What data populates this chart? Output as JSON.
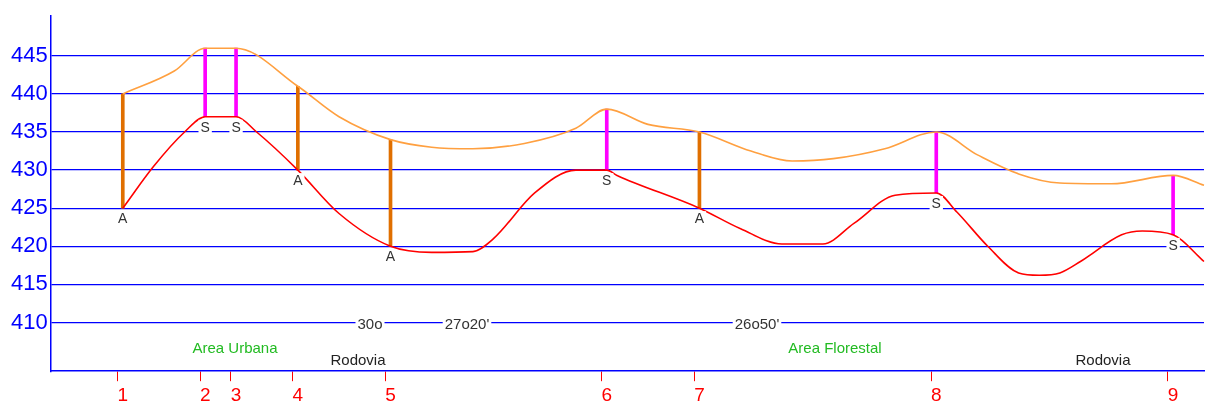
{
  "chart_data": {
    "type": "line",
    "ylim": [
      403.6,
      450.2
    ],
    "yticks": [
      410,
      415,
      420,
      425,
      430,
      435,
      440,
      445
    ],
    "categories": [
      null,
      null,
      null,
      null,
      null,
      null,
      null,
      "1",
      null,
      null,
      null,
      null,
      null,
      null,
      null,
      "2",
      null,
      null,
      "3",
      null,
      null,
      null,
      null,
      null,
      "4",
      null,
      null,
      null,
      null,
      null,
      null,
      null,
      null,
      "5",
      null,
      null,
      null,
      null,
      null,
      null,
      null,
      null,
      null,
      null,
      null,
      null,
      null,
      null,
      null,
      null,
      null,
      null,
      null,
      null,
      "6",
      null,
      null,
      null,
      null,
      null,
      null,
      null,
      null,
      "7",
      null,
      null,
      null,
      null,
      null,
      null,
      null,
      null,
      null,
      null,
      null,
      null,
      null,
      null,
      null,
      null,
      null,
      null,
      null,
      null,
      null,
      null,
      "8",
      null,
      null,
      null,
      null,
      null,
      null,
      null,
      null,
      null,
      null,
      null,
      null,
      null,
      null,
      null,
      null,
      null,
      null,
      null,
      null,
      null,
      null,
      "9",
      null,
      null,
      null
    ],
    "grid": "y",
    "legend": false,
    "marker": "none",
    "line_style": "solid",
    "series": [
      {
        "color": "#ff0000",
        "values": [
          null,
          null,
          null,
          null,
          null,
          null,
          null,
          425,
          null,
          null,
          430.5,
          null,
          null,
          435,
          null,
          437,
          null,
          null,
          437,
          null,
          435,
          null,
          null,
          null,
          430,
          null,
          null,
          null,
          424.3,
          null,
          null,
          null,
          null,
          420,
          null,
          null,
          null,
          419.2,
          null,
          null,
          null,
          419.3,
          null,
          421,
          null,
          null,
          null,
          427,
          null,
          null,
          null,
          430,
          null,
          null,
          430,
          429.3,
          null,
          null,
          null,
          null,
          null,
          null,
          null,
          425,
          null,
          null,
          null,
          422.3,
          null,
          null,
          null,
          420.3,
          null,
          null,
          null,
          420.3,
          null,
          null,
          423,
          null,
          null,
          null,
          426.7,
          null,
          null,
          null,
          427,
          null,
          424.5,
          null,
          null,
          420,
          null,
          null,
          416.5,
          null,
          416.2,
          null,
          416.5,
          null,
          418,
          null,
          null,
          null,
          421.5,
          null,
          422,
          null,
          null,
          421.5,
          null,
          null,
          418
        ]
      },
      {
        "color": "#ffa040",
        "values": [
          null,
          null,
          null,
          null,
          null,
          null,
          null,
          440,
          null,
          null,
          null,
          null,
          443,
          null,
          null,
          446,
          null,
          null,
          446,
          null,
          null,
          null,
          null,
          null,
          441,
          null,
          null,
          null,
          437,
          null,
          null,
          null,
          null,
          434,
          null,
          null,
          null,
          433,
          null,
          null,
          null,
          432.8,
          null,
          null,
          null,
          null,
          433.5,
          null,
          null,
          null,
          null,
          435.5,
          null,
          null,
          438,
          null,
          null,
          null,
          436,
          null,
          null,
          null,
          null,
          435,
          null,
          null,
          null,
          null,
          432.5,
          null,
          null,
          null,
          431.2,
          null,
          null,
          null,
          431.5,
          null,
          null,
          null,
          null,
          432.8,
          null,
          null,
          null,
          null,
          435,
          null,
          null,
          null,
          432,
          null,
          null,
          null,
          429.5,
          null,
          null,
          null,
          428.3,
          null,
          null,
          null,
          null,
          428.2,
          null,
          null,
          null,
          null,
          null,
          429.3,
          null,
          null,
          428
        ]
      },
      {
        "type": "bar",
        "color": "#e06f00",
        "base": [
          null,
          null,
          null,
          null,
          null,
          null,
          null,
          425,
          null,
          null,
          null,
          null,
          null,
          null,
          null,
          null,
          null,
          null,
          null,
          null,
          null,
          null,
          null,
          null,
          430,
          null,
          null,
          null,
          null,
          null,
          null,
          null,
          null,
          420,
          null,
          null,
          null,
          null,
          null,
          null,
          null,
          null,
          null,
          null,
          null,
          null,
          null,
          null,
          null,
          null,
          null,
          null,
          null,
          null,
          null,
          null,
          null,
          null,
          null,
          null,
          null,
          null,
          null,
          425,
          null,
          null,
          null,
          null,
          null,
          null,
          null,
          null,
          null,
          null,
          null,
          null,
          null,
          null,
          null,
          null,
          null,
          null,
          null,
          null,
          null,
          null,
          null,
          null,
          null,
          null,
          null,
          null,
          null,
          null,
          null,
          null,
          null,
          null,
          null,
          null,
          null,
          null,
          null,
          null,
          null,
          null,
          null,
          null,
          null,
          null,
          null,
          null,
          null
        ],
        "values": [
          null,
          null,
          null,
          null,
          null,
          null,
          null,
          15,
          null,
          null,
          null,
          null,
          null,
          null,
          null,
          null,
          null,
          null,
          null,
          null,
          null,
          null,
          null,
          null,
          11,
          null,
          null,
          null,
          null,
          null,
          null,
          null,
          null,
          14,
          null,
          null,
          null,
          null,
          null,
          null,
          null,
          null,
          null,
          null,
          null,
          null,
          null,
          null,
          null,
          null,
          null,
          null,
          null,
          null,
          null,
          null,
          null,
          null,
          null,
          null,
          null,
          null,
          null,
          10,
          null,
          null,
          null,
          null,
          null,
          null,
          null,
          null,
          null,
          null,
          null,
          null,
          null,
          null,
          null,
          null,
          null,
          null,
          null,
          null,
          null,
          null,
          null,
          null,
          null,
          null,
          null,
          null,
          null,
          null,
          null,
          null,
          null,
          null,
          null,
          null,
          null,
          null,
          null,
          null,
          null,
          null,
          null,
          null,
          null,
          null,
          null,
          null,
          null
        ]
      },
      {
        "type": "bar",
        "color": "#ff00ff",
        "base": [
          null,
          null,
          null,
          null,
          null,
          null,
          null,
          null,
          null,
          null,
          null,
          null,
          null,
          null,
          null,
          437,
          null,
          null,
          437,
          null,
          null,
          null,
          null,
          null,
          null,
          null,
          null,
          null,
          null,
          null,
          null,
          null,
          null,
          null,
          null,
          null,
          null,
          null,
          null,
          null,
          null,
          null,
          null,
          null,
          null,
          null,
          null,
          null,
          null,
          null,
          null,
          null,
          null,
          null,
          430,
          null,
          null,
          null,
          null,
          null,
          null,
          null,
          null,
          null,
          null,
          null,
          null,
          null,
          null,
          null,
          null,
          null,
          null,
          null,
          null,
          null,
          null,
          null,
          null,
          null,
          null,
          null,
          null,
          null,
          null,
          null,
          427,
          null,
          null,
          null,
          null,
          null,
          null,
          null,
          null,
          null,
          null,
          null,
          null,
          null,
          null,
          null,
          null,
          null,
          null,
          null,
          null,
          null,
          null,
          421.5,
          null,
          null,
          null
        ],
        "values": [
          null,
          null,
          null,
          null,
          null,
          null,
          null,
          null,
          null,
          null,
          null,
          null,
          null,
          null,
          null,
          9,
          null,
          null,
          9,
          null,
          null,
          null,
          null,
          null,
          null,
          null,
          null,
          null,
          null,
          null,
          null,
          null,
          null,
          null,
          null,
          null,
          null,
          null,
          null,
          null,
          null,
          null,
          null,
          null,
          null,
          null,
          null,
          null,
          null,
          null,
          null,
          null,
          null,
          null,
          8,
          null,
          null,
          null,
          null,
          null,
          null,
          null,
          null,
          null,
          null,
          null,
          null,
          null,
          null,
          null,
          null,
          null,
          null,
          null,
          null,
          null,
          null,
          null,
          null,
          null,
          null,
          null,
          null,
          null,
          null,
          null,
          8,
          null,
          null,
          null,
          null,
          null,
          null,
          null,
          null,
          null,
          null,
          null,
          null,
          null,
          null,
          null,
          null,
          null,
          null,
          null,
          null,
          null,
          null,
          7.8,
          null,
          null,
          null
        ]
      }
    ],
    "annotations": [
      {
        "text": "A",
        "x": "1",
        "y": 425
      },
      {
        "text": "S",
        "x": "2",
        "y": 437
      },
      {
        "text": "S",
        "x": "3",
        "y": 437
      },
      {
        "text": "A",
        "x": "4",
        "y": 430
      },
      {
        "text": "A",
        "x": "5",
        "y": 420
      },
      {
        "text": "S",
        "x": "6",
        "y": 430
      },
      {
        "text": "A",
        "x": "7",
        "y": 425
      },
      {
        "text": "S",
        "x": "8",
        "y": 427
      },
      {
        "text": "S",
        "x": "9",
        "y": 421.5
      },
      "Area Urbana",
      "Area Florestal",
      "Rodovia",
      "Rodovia",
      "30o",
      "27o20'",
      "26o50'"
    ]
  }
}
